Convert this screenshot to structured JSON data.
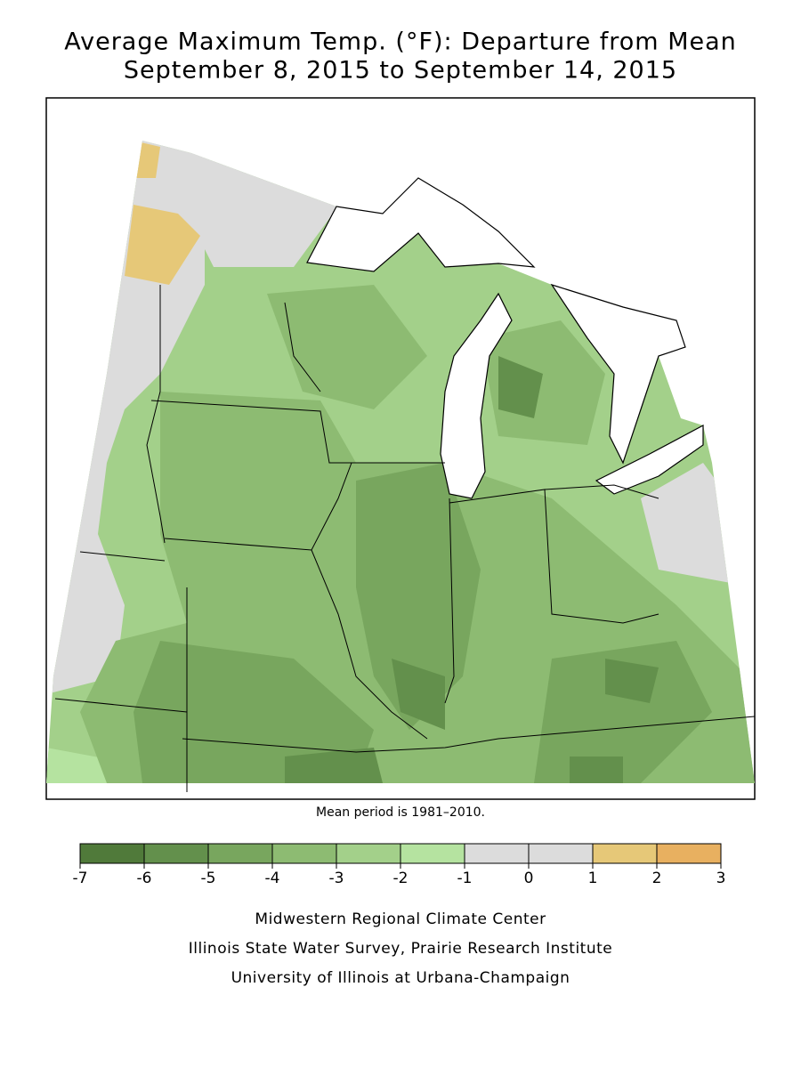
{
  "title": [
    "Average Maximum Temp. (°F): Departure from Mean",
    "September 8, 2015 to September 14, 2015"
  ],
  "note": "Mean period is 1981–2010.",
  "legend": {
    "ticks": [
      -7,
      -6,
      -5,
      -4,
      -3,
      -2,
      -1,
      0,
      1,
      2,
      3
    ],
    "colors": [
      "#507a3a",
      "#63904c",
      "#78a65e",
      "#8dbb72",
      "#a3d08a",
      "#b5e3a0",
      "#dcdcdc",
      "#dcdcdc",
      "#e6c878",
      "#e8b060"
    ]
  },
  "credits": [
    "Midwestern Regional Climate Center",
    "Illinois State Water Survey, Prairie Research Institute",
    "University of Illinois at Urbana-Champaign"
  ]
}
